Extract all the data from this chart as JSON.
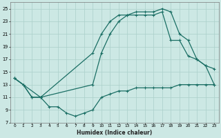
{
  "xlabel": "Humidex (Indice chaleur)",
  "bg_color": "#cce8e4",
  "line_color": "#1a6e64",
  "grid_color": "#aacfca",
  "xlim": [
    -0.5,
    23.5
  ],
  "ylim": [
    7,
    26
  ],
  "xticks": [
    0,
    1,
    2,
    3,
    4,
    5,
    6,
    7,
    8,
    9,
    10,
    11,
    12,
    13,
    14,
    15,
    16,
    17,
    18,
    19,
    20,
    21,
    22,
    23
  ],
  "yticks": [
    7,
    9,
    11,
    13,
    15,
    17,
    19,
    21,
    23,
    25
  ],
  "line1_x": [
    0,
    1,
    2,
    3,
    4,
    5,
    6,
    7,
    8,
    9,
    10,
    11,
    12,
    13,
    14,
    15,
    16,
    17,
    18,
    19,
    20,
    21,
    22,
    23
  ],
  "line1_y": [
    14,
    13,
    11,
    11,
    9.5,
    9.5,
    8.5,
    8,
    8.5,
    9,
    11,
    11.5,
    12,
    12,
    12.5,
    12.5,
    12.5,
    12.5,
    12.5,
    13,
    13,
    13,
    13,
    13
  ],
  "line2_x": [
    0,
    1,
    2,
    3,
    9,
    10,
    11,
    12,
    13,
    14,
    15,
    16,
    17,
    18,
    19,
    20,
    21,
    22,
    23
  ],
  "line2_y": [
    14,
    13,
    11,
    11,
    18,
    21,
    23,
    24,
    24,
    24.5,
    24.5,
    24.5,
    25,
    24.5,
    21,
    20,
    17,
    16,
    13
  ],
  "line3_x": [
    0,
    3,
    9,
    10,
    11,
    12,
    13,
    14,
    15,
    16,
    17,
    18,
    19,
    20,
    21,
    22,
    23
  ],
  "line3_y": [
    14,
    11,
    13,
    18,
    21,
    23,
    24,
    24,
    24,
    24,
    24.5,
    20,
    20,
    17.5,
    17,
    16,
    15.5
  ]
}
